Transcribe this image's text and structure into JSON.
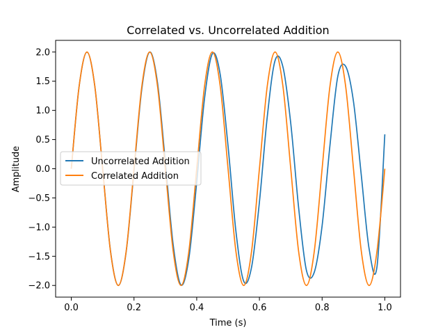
{
  "chart_data": {
    "type": "line",
    "title": "Correlated vs. Uncorrelated Addition",
    "xlabel": "Time (s)",
    "ylabel": "Amplitude",
    "xlim": [
      -0.05,
      1.05
    ],
    "ylim": [
      -2.2,
      2.2
    ],
    "x_ticks": [
      0.0,
      0.2,
      0.4,
      0.6,
      0.8,
      1.0
    ],
    "x_tick_labels": [
      "0.0",
      "0.2",
      "0.4",
      "0.6",
      "0.8",
      "1.0"
    ],
    "y_ticks": [
      -2.0,
      -1.5,
      -1.0,
      -0.5,
      0.0,
      0.5,
      1.0,
      1.5,
      2.0
    ],
    "y_tick_labels": [
      "−2.0",
      "−1.5",
      "−1.0",
      "−0.5",
      "0.0",
      "0.5",
      "1.0",
      "1.5",
      "2.0"
    ],
    "grid": false,
    "legend_position": "center-left",
    "series": [
      {
        "name": "Uncorrelated Addition",
        "color": "#1f77b4",
        "x": [
          0.0,
          0.025,
          0.05,
          0.075,
          0.1,
          0.125,
          0.15,
          0.175,
          0.2,
          0.225,
          0.25,
          0.275,
          0.3,
          0.325,
          0.35,
          0.375,
          0.4,
          0.425,
          0.45,
          0.475,
          0.5,
          0.525,
          0.55,
          0.575,
          0.6,
          0.625,
          0.65,
          0.675,
          0.7,
          0.725,
          0.75,
          0.775,
          0.8,
          0.825,
          0.85,
          0.875,
          0.9,
          0.925,
          0.95,
          0.975,
          1.0
        ],
        "y": [
          0.0,
          1.413,
          1.998,
          1.413,
          0.002,
          -1.409,
          -2.0,
          -1.423,
          -0.035,
          1.373,
          1.999,
          1.471,
          0.111,
          -1.306,
          -1.992,
          -1.537,
          -0.23,
          1.207,
          1.971,
          1.612,
          0.386,
          -1.069,
          -1.929,
          -1.686,
          -0.573,
          0.888,
          1.856,
          1.745,
          0.776,
          -0.663,
          -1.743,
          -1.773,
          -0.976,
          0.401,
          1.583,
          1.755,
          1.153,
          -0.114,
          -1.376,
          -1.68,
          0.59
        ]
      },
      {
        "name": "Correlated Addition",
        "color": "#ff7f0e",
        "x": [
          0.0,
          0.025,
          0.05,
          0.075,
          0.1,
          0.125,
          0.15,
          0.175,
          0.2,
          0.225,
          0.25,
          0.275,
          0.3,
          0.325,
          0.35,
          0.375,
          0.4,
          0.425,
          0.45,
          0.475,
          0.5,
          0.525,
          0.55,
          0.575,
          0.6,
          0.625,
          0.65,
          0.675,
          0.7,
          0.725,
          0.75,
          0.775,
          0.8,
          0.825,
          0.85,
          0.875,
          0.9,
          0.925,
          0.95,
          0.975,
          1.0
        ],
        "y": [
          0.0,
          1.414,
          2.0,
          1.414,
          0.0,
          -1.414,
          -2.0,
          -1.414,
          0.0,
          1.414,
          2.0,
          1.414,
          0.0,
          -1.414,
          -2.0,
          -1.414,
          0.0,
          1.414,
          2.0,
          1.414,
          0.0,
          -1.414,
          -2.0,
          -1.414,
          0.0,
          1.414,
          2.0,
          1.414,
          0.0,
          -1.414,
          -2.0,
          -1.414,
          0.0,
          1.414,
          2.0,
          1.414,
          0.0,
          -1.414,
          -2.0,
          -1.414,
          0.0
        ]
      }
    ]
  }
}
